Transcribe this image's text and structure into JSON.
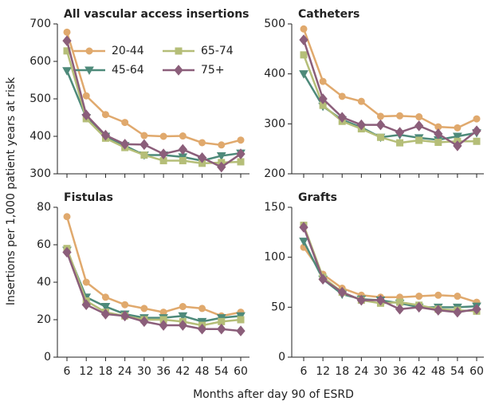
{
  "y_label": "Insertions per 1,000 patient years at risk",
  "x_label": "Months after day 90 of ESRD",
  "chart_data": [
    {
      "type": "line",
      "title": "All vascular access insertions",
      "x": [
        6,
        12,
        18,
        24,
        30,
        36,
        42,
        48,
        54,
        60
      ],
      "xlim": [
        6,
        60
      ],
      "ylim": [
        300,
        700
      ],
      "yticks": [
        300,
        400,
        500,
        600,
        700
      ],
      "series": [
        {
          "name": "20-44",
          "color": "#e0a96d",
          "marker": "circle",
          "values": [
            678,
            508,
            458,
            437,
            402,
            400,
            401,
            383,
            377,
            390
          ]
        },
        {
          "name": "45-64",
          "color": "#4e8a7a",
          "marker": "triangle",
          "values": [
            575,
            450,
            400,
            375,
            350,
            350,
            345,
            335,
            348,
            355
          ]
        },
        {
          "name": "65-74",
          "color": "#b5be78",
          "marker": "square",
          "values": [
            628,
            447,
            395,
            370,
            350,
            335,
            335,
            328,
            330,
            332
          ]
        },
        {
          "name": "75+",
          "color": "#8b5e7a",
          "marker": "diamond",
          "values": [
            655,
            457,
            403,
            379,
            378,
            353,
            365,
            343,
            318,
            353
          ]
        }
      ]
    },
    {
      "type": "line",
      "title": "Catheters",
      "x": [
        6,
        12,
        18,
        24,
        30,
        36,
        42,
        48,
        54,
        60
      ],
      "xlim": [
        6,
        60
      ],
      "ylim": [
        200,
        500
      ],
      "yticks": [
        200,
        300,
        400,
        500
      ],
      "series": [
        {
          "color": "#e0a96d",
          "marker": "circle",
          "values": [
            490,
            385,
            355,
            345,
            315,
            316,
            314,
            294,
            292,
            310
          ]
        },
        {
          "color": "#4e8a7a",
          "marker": "triangle",
          "values": [
            400,
            335,
            308,
            293,
            273,
            278,
            272,
            268,
            275,
            282
          ]
        },
        {
          "color": "#b5be78",
          "marker": "square",
          "values": [
            438,
            337,
            305,
            290,
            273,
            262,
            267,
            263,
            265,
            265
          ]
        },
        {
          "color": "#8b5e7a",
          "marker": "diamond",
          "values": [
            468,
            350,
            313,
            298,
            298,
            283,
            296,
            280,
            256,
            286
          ]
        }
      ]
    },
    {
      "type": "line",
      "title": "Fistulas",
      "x": [
        6,
        12,
        18,
        24,
        30,
        36,
        42,
        48,
        54,
        60
      ],
      "xlim": [
        6,
        60
      ],
      "ylim": [
        0,
        80
      ],
      "yticks": [
        0,
        20,
        40,
        60,
        80
      ],
      "series": [
        {
          "color": "#e0a96d",
          "marker": "circle",
          "values": [
            75,
            40,
            32,
            28,
            26,
            24,
            27,
            26,
            22,
            24
          ]
        },
        {
          "color": "#4e8a7a",
          "marker": "triangle",
          "values": [
            57,
            32,
            27,
            23,
            21,
            21,
            22,
            19,
            21,
            22
          ]
        },
        {
          "color": "#b5be78",
          "marker": "square",
          "values": [
            58,
            30,
            24,
            22,
            20,
            20,
            19,
            17,
            19,
            20
          ]
        },
        {
          "color": "#8b5e7a",
          "marker": "diamond",
          "values": [
            56,
            28,
            23,
            22,
            19,
            17,
            17,
            15,
            15,
            14
          ]
        }
      ]
    },
    {
      "type": "line",
      "title": "Grafts",
      "x": [
        6,
        12,
        18,
        24,
        30,
        36,
        42,
        48,
        54,
        60
      ],
      "xlim": [
        6,
        60
      ],
      "ylim": [
        0,
        150
      ],
      "yticks": [
        0,
        50,
        100,
        150
      ],
      "series": [
        {
          "color": "#e0a96d",
          "marker": "circle",
          "values": [
            110,
            83,
            69,
            62,
            60,
            60,
            61,
            62,
            61,
            55
          ]
        },
        {
          "color": "#4e8a7a",
          "marker": "triangle",
          "values": [
            116,
            78,
            63,
            58,
            57,
            54,
            50,
            50,
            50,
            51
          ]
        },
        {
          "color": "#b5be78",
          "marker": "square",
          "values": [
            132,
            80,
            65,
            57,
            54,
            55,
            52,
            48,
            47,
            46
          ]
        },
        {
          "color": "#8b5e7a",
          "marker": "diamond",
          "values": [
            130,
            78,
            65,
            57,
            57,
            48,
            50,
            47,
            45,
            48
          ]
        }
      ]
    }
  ]
}
